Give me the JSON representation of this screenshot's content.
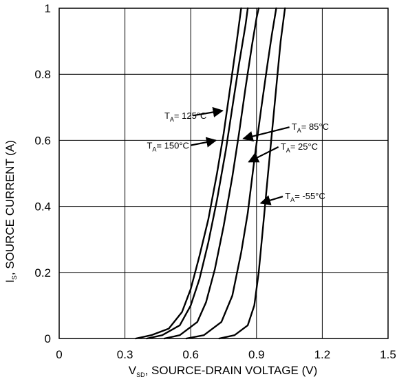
{
  "chart_data": {
    "type": "line",
    "title": "",
    "xlabel": {
      "main": "V",
      "sub": "SD",
      "rest": ", SOURCE-DRAIN VOLTAGE (V)"
    },
    "ylabel": {
      "main": "I",
      "sub": "S",
      "rest": ", SOURCE CURRENT (A)"
    },
    "xlim": [
      0,
      1.5
    ],
    "ylim": [
      0,
      1
    ],
    "xticks": [
      0,
      0.3,
      0.6,
      0.9,
      1.2,
      1.5
    ],
    "yticks": [
      0,
      0.2,
      0.4,
      0.6,
      0.8,
      1
    ],
    "xtick_labels": [
      "0",
      "0.3",
      "0.6",
      "0.9",
      "1.2",
      "1.5"
    ],
    "ytick_labels": [
      "0",
      "0.2",
      "0.4",
      "0.6",
      "0.8",
      "1"
    ],
    "grid": true,
    "series": [
      {
        "name": "T_A = 150°C",
        "points": [
          [
            0.35,
            0.0
          ],
          [
            0.42,
            0.01
          ],
          [
            0.5,
            0.03
          ],
          [
            0.56,
            0.08
          ],
          [
            0.6,
            0.15
          ],
          [
            0.64,
            0.25
          ],
          [
            0.68,
            0.36
          ],
          [
            0.72,
            0.5
          ],
          [
            0.75,
            0.62
          ],
          [
            0.78,
            0.76
          ],
          [
            0.81,
            0.9
          ],
          [
            0.83,
            1.0
          ]
        ]
      },
      {
        "name": "T_A = 125°C",
        "points": [
          [
            0.4,
            0.0
          ],
          [
            0.47,
            0.01
          ],
          [
            0.55,
            0.04
          ],
          [
            0.6,
            0.1
          ],
          [
            0.64,
            0.18
          ],
          [
            0.68,
            0.29
          ],
          [
            0.72,
            0.42
          ],
          [
            0.76,
            0.57
          ],
          [
            0.79,
            0.7
          ],
          [
            0.82,
            0.83
          ],
          [
            0.85,
            0.95
          ],
          [
            0.86,
            1.0
          ]
        ]
      },
      {
        "name": "T_A = 85°C",
        "points": [
          [
            0.48,
            0.0
          ],
          [
            0.55,
            0.01
          ],
          [
            0.63,
            0.05
          ],
          [
            0.67,
            0.11
          ],
          [
            0.71,
            0.21
          ],
          [
            0.75,
            0.34
          ],
          [
            0.79,
            0.49
          ],
          [
            0.82,
            0.62
          ],
          [
            0.85,
            0.76
          ],
          [
            0.88,
            0.89
          ],
          [
            0.9,
            0.97
          ],
          [
            0.91,
            1.0
          ]
        ]
      },
      {
        "name": "T_A = 25°C",
        "points": [
          [
            0.58,
            0.0
          ],
          [
            0.66,
            0.01
          ],
          [
            0.74,
            0.05
          ],
          [
            0.79,
            0.13
          ],
          [
            0.83,
            0.26
          ],
          [
            0.86,
            0.38
          ],
          [
            0.89,
            0.54
          ],
          [
            0.92,
            0.69
          ],
          [
            0.95,
            0.83
          ],
          [
            0.97,
            0.92
          ],
          [
            0.99,
            1.0
          ]
        ]
      },
      {
        "name": "T_A = -55°C",
        "points": [
          [
            0.73,
            0.0
          ],
          [
            0.8,
            0.01
          ],
          [
            0.86,
            0.04
          ],
          [
            0.89,
            0.1
          ],
          [
            0.91,
            0.2
          ],
          [
            0.93,
            0.34
          ],
          [
            0.95,
            0.48
          ],
          [
            0.97,
            0.62
          ],
          [
            0.99,
            0.76
          ],
          [
            1.01,
            0.9
          ],
          [
            1.03,
            1.0
          ]
        ]
      }
    ],
    "annotations": [
      {
        "main": "T",
        "sub": "A",
        "rest": "= 125°C",
        "text_x": 0.48,
        "text_y": 0.665,
        "arrow_from": [
          0.61,
          0.675
        ],
        "arrow_to": [
          0.745,
          0.69
        ]
      },
      {
        "main": "T",
        "sub": "A",
        "rest": "= 85°C",
        "text_x": 1.06,
        "text_y": 0.632,
        "arrow_from": [
          1.05,
          0.64
        ],
        "arrow_to": [
          0.84,
          0.605
        ]
      },
      {
        "main": "T",
        "sub": "A",
        "rest": "= 150°C",
        "text_x": 0.4,
        "text_y": 0.575,
        "arrow_from": [
          0.6,
          0.585
        ],
        "arrow_to": [
          0.715,
          0.6
        ]
      },
      {
        "main": "T",
        "sub": "A",
        "rest": "= 25°C",
        "text_x": 1.01,
        "text_y": 0.572,
        "arrow_from": [
          1.0,
          0.58
        ],
        "arrow_to": [
          0.865,
          0.535
        ]
      },
      {
        "main": "T",
        "sub": "A",
        "rest": "= -55°C",
        "text_x": 1.03,
        "text_y": 0.422,
        "arrow_from": [
          1.02,
          0.43
        ],
        "arrow_to": [
          0.92,
          0.41
        ]
      }
    ]
  }
}
